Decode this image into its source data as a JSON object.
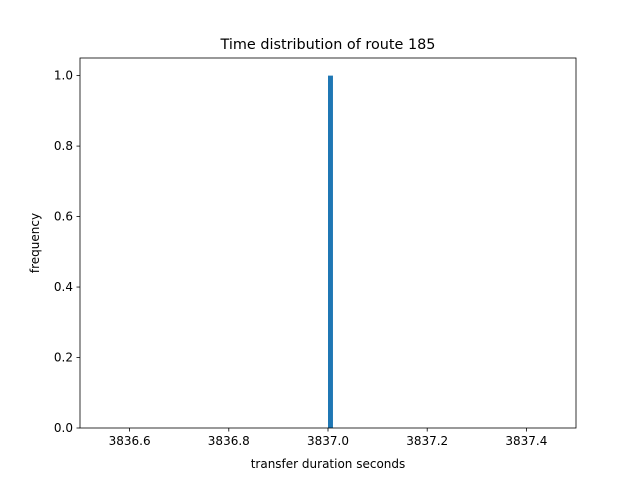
{
  "chart_data": {
    "type": "bar",
    "title": "Time distribution of route 185",
    "xlabel": "transfer duration seconds",
    "ylabel": "frequency",
    "xlim": [
      3836.5,
      3837.5
    ],
    "ylim": [
      0,
      1.05
    ],
    "x_ticks": [
      "3836.6",
      "3836.8",
      "3837.0",
      "3837.2",
      "3837.4"
    ],
    "y_ticks": [
      "0.0",
      "0.2",
      "0.4",
      "0.6",
      "0.8",
      "1.0"
    ],
    "bars": [
      {
        "x_start": 3837.0,
        "x_end": 3837.01,
        "value": 1.0
      }
    ],
    "bar_color": "#1f77b4",
    "grid": false,
    "legend": "none"
  }
}
